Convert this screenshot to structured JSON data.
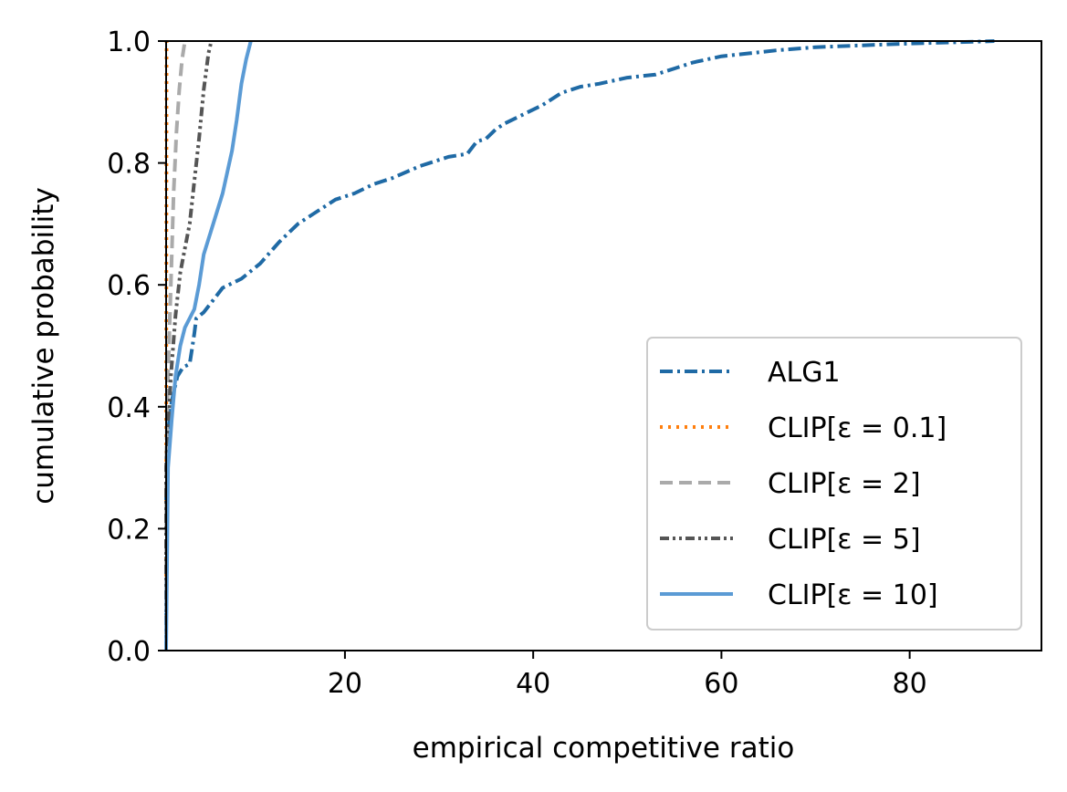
{
  "chart_data": {
    "type": "line",
    "xlabel": "empirical competitive ratio",
    "ylabel": "cumulative probability",
    "xlim": [
      1,
      94
    ],
    "ylim": [
      0,
      1
    ],
    "x_ticks": [
      20,
      40,
      60,
      80
    ],
    "y_ticks": [
      0.0,
      0.2,
      0.4,
      0.6,
      0.8,
      1.0
    ],
    "x_tick_labels": [
      "20",
      "40",
      "60",
      "80"
    ],
    "y_tick_labels": [
      "0.0",
      "0.2",
      "0.4",
      "0.6",
      "0.8",
      "1.0"
    ],
    "grid": false,
    "legend_position": "lower-right",
    "series": [
      {
        "name": "ALG1",
        "color": "#1f6aa5",
        "style": "dashdot",
        "points": [
          [
            1.0,
            0.0
          ],
          [
            1.0,
            0.3
          ],
          [
            1.2,
            0.36
          ],
          [
            1.6,
            0.41
          ],
          [
            2.2,
            0.45
          ],
          [
            2.8,
            0.465
          ],
          [
            3.5,
            0.47
          ],
          [
            3.8,
            0.5
          ],
          [
            4.0,
            0.52
          ],
          [
            4.2,
            0.545
          ],
          [
            5.0,
            0.555
          ],
          [
            6.0,
            0.575
          ],
          [
            7.0,
            0.595
          ],
          [
            9.0,
            0.61
          ],
          [
            11.0,
            0.635
          ],
          [
            13.0,
            0.67
          ],
          [
            15.0,
            0.7
          ],
          [
            17.0,
            0.72
          ],
          [
            19.0,
            0.74
          ],
          [
            21.0,
            0.75
          ],
          [
            23.0,
            0.765
          ],
          [
            25.0,
            0.775
          ],
          [
            28.0,
            0.795
          ],
          [
            31.0,
            0.81
          ],
          [
            33.0,
            0.815
          ],
          [
            34.0,
            0.835
          ],
          [
            35.0,
            0.84
          ],
          [
            36.0,
            0.855
          ],
          [
            37.0,
            0.865
          ],
          [
            39.0,
            0.88
          ],
          [
            41.0,
            0.895
          ],
          [
            43.0,
            0.915
          ],
          [
            45.0,
            0.925
          ],
          [
            47.0,
            0.93
          ],
          [
            50.0,
            0.94
          ],
          [
            53.0,
            0.945
          ],
          [
            55.0,
            0.955
          ],
          [
            57.0,
            0.965
          ],
          [
            60.0,
            0.975
          ],
          [
            63.0,
            0.98
          ],
          [
            66.0,
            0.985
          ],
          [
            70.0,
            0.99
          ],
          [
            75.0,
            0.993
          ],
          [
            80.0,
            0.996
          ],
          [
            85.0,
            0.998
          ],
          [
            89.0,
            1.0
          ]
        ]
      },
      {
        "name": "CLIP[ε = 0.1]",
        "color": "#ff7f0e",
        "style": "dotted",
        "points": [
          [
            1.0,
            0.0
          ],
          [
            1.02,
            0.5
          ],
          [
            1.05,
            1.0
          ]
        ]
      },
      {
        "name": "CLIP[ε = 2]",
        "color": "#aaaaaa",
        "style": "dashed",
        "points": [
          [
            1.0,
            0.0
          ],
          [
            1.0,
            0.3
          ],
          [
            1.2,
            0.45
          ],
          [
            1.5,
            0.6
          ],
          [
            1.8,
            0.75
          ],
          [
            2.1,
            0.85
          ],
          [
            2.4,
            0.92
          ],
          [
            2.7,
            0.97
          ],
          [
            3.0,
            1.0
          ]
        ]
      },
      {
        "name": "CLIP[ε = 5]",
        "color": "#555555",
        "style": "dashdotdot",
        "points": [
          [
            1.0,
            0.0
          ],
          [
            1.0,
            0.3
          ],
          [
            1.5,
            0.45
          ],
          [
            2.0,
            0.55
          ],
          [
            2.5,
            0.62
          ],
          [
            3.0,
            0.66
          ],
          [
            3.5,
            0.7
          ],
          [
            4.0,
            0.77
          ],
          [
            4.5,
            0.84
          ],
          [
            5.0,
            0.92
          ],
          [
            5.5,
            0.98
          ],
          [
            5.8,
            1.0
          ]
        ]
      },
      {
        "name": "CLIP[ε = 10]",
        "color": "#5b9bd5",
        "style": "solid",
        "points": [
          [
            1.0,
            0.0
          ],
          [
            1.2,
            0.3
          ],
          [
            1.6,
            0.38
          ],
          [
            2.0,
            0.45
          ],
          [
            2.5,
            0.5
          ],
          [
            3.0,
            0.53
          ],
          [
            4.0,
            0.56
          ],
          [
            4.5,
            0.6
          ],
          [
            5.0,
            0.65
          ],
          [
            6.0,
            0.7
          ],
          [
            7.0,
            0.75
          ],
          [
            8.0,
            0.82
          ],
          [
            8.5,
            0.87
          ],
          [
            9.0,
            0.93
          ],
          [
            9.5,
            0.97
          ],
          [
            10.0,
            1.0
          ]
        ]
      }
    ]
  }
}
